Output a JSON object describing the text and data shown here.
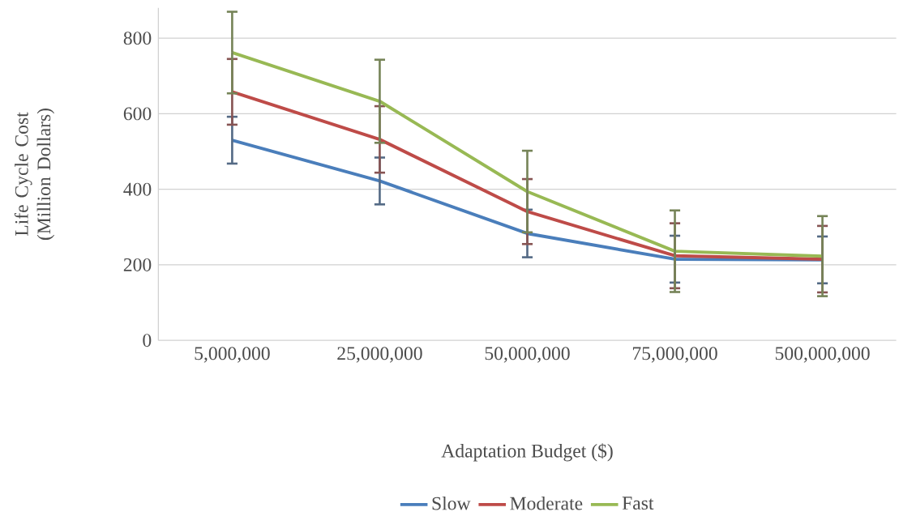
{
  "chart_data": {
    "type": "line",
    "xlabel": "Adaptation Budget ($)",
    "ylabel": "Life Cycle Cost (Million Dollars)",
    "categories": [
      "5,000,000",
      "25,000,000",
      "50,000,000",
      "75,000,000",
      "500,000,000"
    ],
    "series": [
      {
        "name": "Slow",
        "color": "#4a7ebb",
        "values": [
          530,
          422,
          283,
          215,
          213
        ],
        "errors": [
          62,
          62,
          63,
          62,
          62
        ]
      },
      {
        "name": "Moderate",
        "color": "#be4b48",
        "values": [
          658,
          532,
          341,
          224,
          215
        ],
        "errors": [
          87,
          88,
          86,
          86,
          88
        ]
      },
      {
        "name": "Fast",
        "color": "#98b954",
        "values": [
          762,
          633,
          394,
          236,
          223
        ],
        "errors": [
          108,
          110,
          108,
          108,
          106
        ]
      }
    ],
    "ylim": [
      0,
      880
    ],
    "yticks": [
      0,
      200,
      400,
      600,
      800
    ],
    "grid": "y",
    "legend": "bottom",
    "marker": "none",
    "line_style": "solid"
  }
}
